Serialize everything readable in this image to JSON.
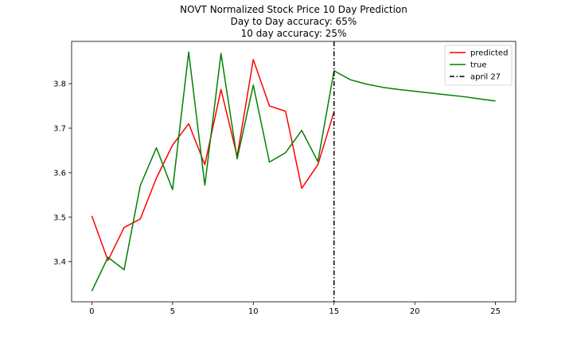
{
  "chart_data": {
    "type": "line",
    "title_lines": [
      "NOVT Normalized Stock Price 10 Day Prediction",
      "Day to Day accuracy: 65%",
      "10 day accuracy: 25%"
    ],
    "xlabel": "",
    "ylabel": "",
    "xlim": [
      -1.25,
      26.25
    ],
    "ylim": [
      3.31,
      3.895
    ],
    "x_ticks": [
      0,
      5,
      10,
      15,
      20,
      25
    ],
    "y_ticks": [
      3.4,
      3.5,
      3.6,
      3.7,
      3.8
    ],
    "grid": false,
    "legend_position": "top-right",
    "series": [
      {
        "name": "predicted",
        "color": "#ff0000",
        "x": [
          0,
          1,
          2,
          3,
          4,
          5,
          6,
          7,
          8,
          9,
          10,
          11,
          12,
          13,
          14,
          15
        ],
        "y": [
          3.503,
          3.403,
          3.477,
          3.496,
          3.588,
          3.662,
          3.71,
          3.618,
          3.787,
          3.637,
          3.854,
          3.75,
          3.738,
          3.565,
          3.618,
          3.737
        ]
      },
      {
        "name": "true",
        "color": "#008000",
        "x": [
          0,
          1,
          2,
          3,
          4,
          5,
          6,
          7,
          8,
          9,
          10,
          11,
          12,
          13,
          14,
          15,
          16,
          17,
          18,
          19,
          20,
          21,
          22,
          23,
          24,
          25
        ],
        "y": [
          3.334,
          3.41,
          3.382,
          3.571,
          3.656,
          3.562,
          3.871,
          3.572,
          3.868,
          3.631,
          3.797,
          3.624,
          3.645,
          3.695,
          3.625,
          3.829,
          3.809,
          3.799,
          3.792,
          3.787,
          3.783,
          3.779,
          3.775,
          3.771,
          3.766,
          3.761
        ]
      }
    ],
    "vline": {
      "name": "april 27",
      "x": 15,
      "color": "#000000",
      "style": "dashdot"
    }
  }
}
